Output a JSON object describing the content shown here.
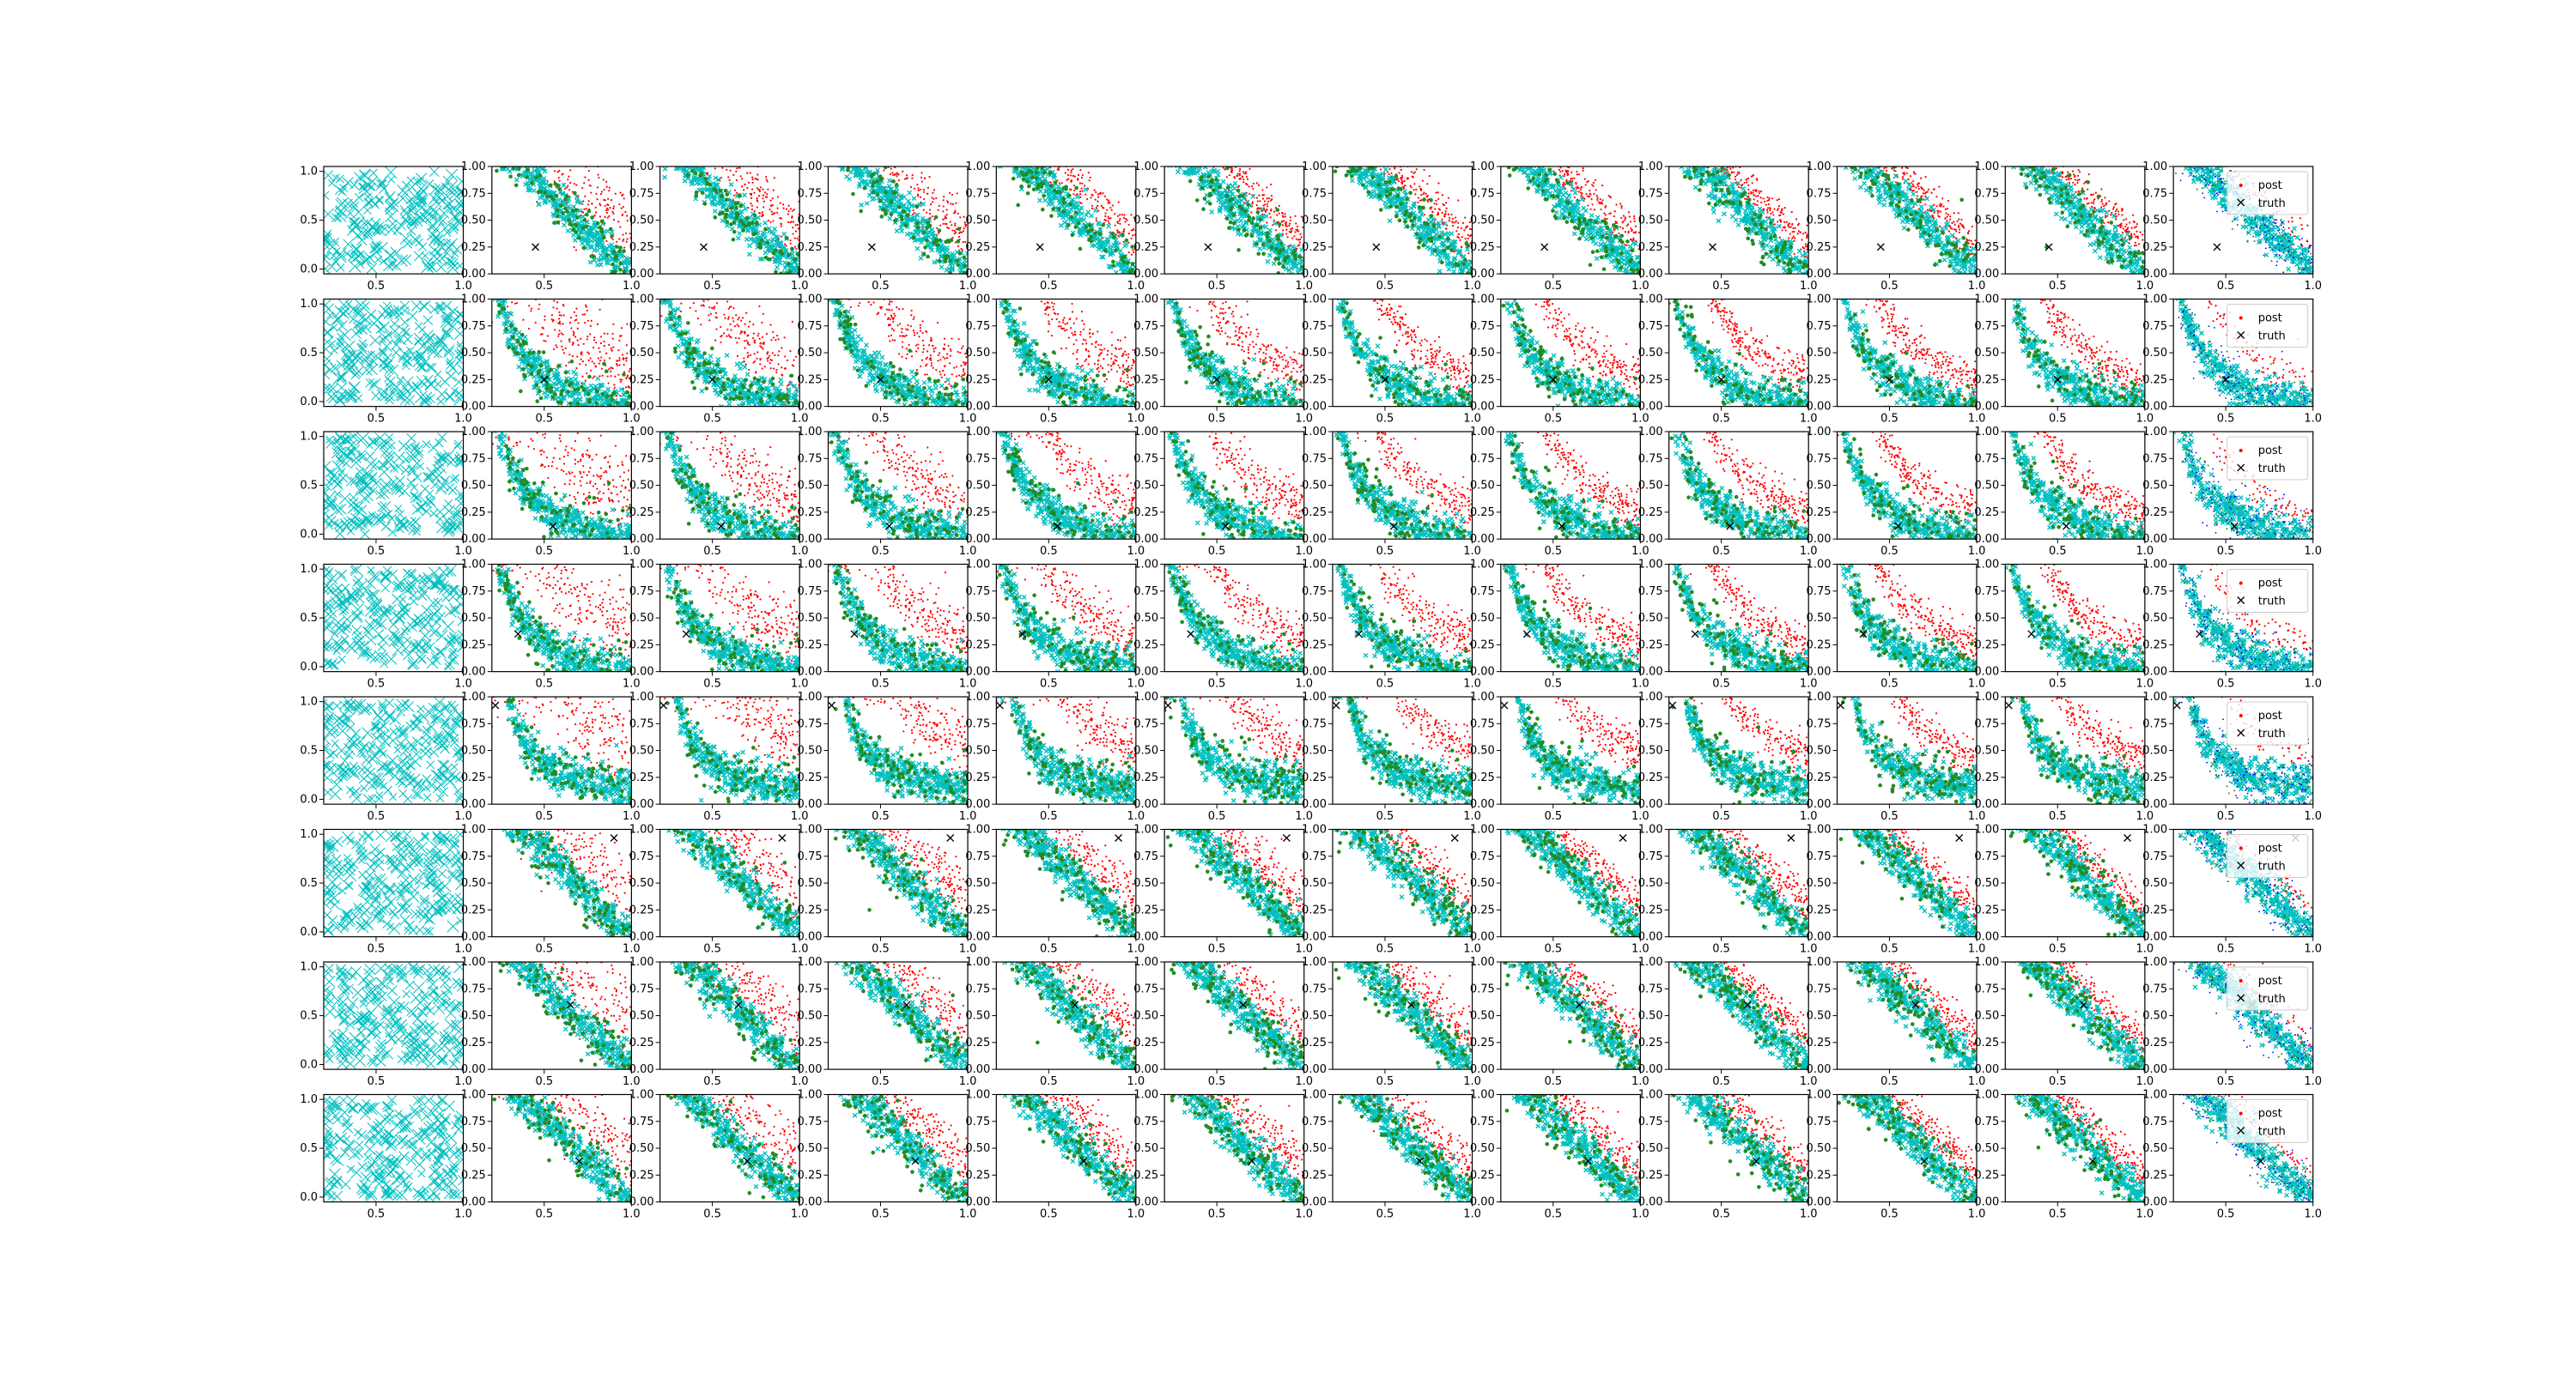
{
  "figure": {
    "rows": 8,
    "cols": 12,
    "colors": {
      "samples": "#00bfbf",
      "accepted": "#228b22",
      "posterior": "#ff0000",
      "posterior_last": "#0000ff",
      "axes": "#000000",
      "legend_bg": "#ffffff"
    }
  },
  "first_column_axes": {
    "x_ticks": [
      "0.5",
      "1.0"
    ],
    "y_ticks": [
      "0.0",
      "0.5",
      "1.0"
    ]
  },
  "other_axes": {
    "x_ticks": [
      "0.5",
      "1.0"
    ],
    "y_ticks": [
      "0.00",
      "0.25",
      "0.50",
      "0.75",
      "1.00"
    ]
  },
  "legend": {
    "entries": [
      "post",
      "truth"
    ],
    "markers": [
      "point-marker",
      "x-marker"
    ]
  },
  "chart_data": {
    "type": "scatter",
    "grid": false,
    "xlim_first_column": [
      0.2,
      1.0
    ],
    "ylim_first_column": [
      -0.05,
      1.05
    ],
    "xlim": [
      0.2,
      1.0
    ],
    "ylim": [
      0.0,
      1.0
    ],
    "series": [
      {
        "name": "post",
        "marker": "point"
      },
      {
        "name": "truth",
        "marker": "x"
      }
    ],
    "rows": [
      {
        "truth": [
          0.45,
          0.25
        ],
        "curve": "diagonal",
        "legend_position": "right"
      },
      {
        "truth": [
          0.5,
          0.25
        ],
        "curve": "arc",
        "legend_position": "right"
      },
      {
        "truth": [
          0.55,
          0.12
        ],
        "curve": "arc",
        "legend_position": "right"
      },
      {
        "truth": [
          0.35,
          0.35
        ],
        "curve": "arc",
        "legend_position": "right"
      },
      {
        "truth": [
          0.22,
          0.92
        ],
        "curve": "hyperbola",
        "legend_position": "right"
      },
      {
        "truth": [
          0.9,
          0.92
        ],
        "curve": "diagonal",
        "legend_position": "right"
      },
      {
        "truth": [
          0.65,
          0.6
        ],
        "curve": "diagonal",
        "legend_position": "right"
      },
      {
        "truth": [
          0.7,
          0.38
        ],
        "curve": "diagonal",
        "legend_position": "right"
      }
    ]
  }
}
